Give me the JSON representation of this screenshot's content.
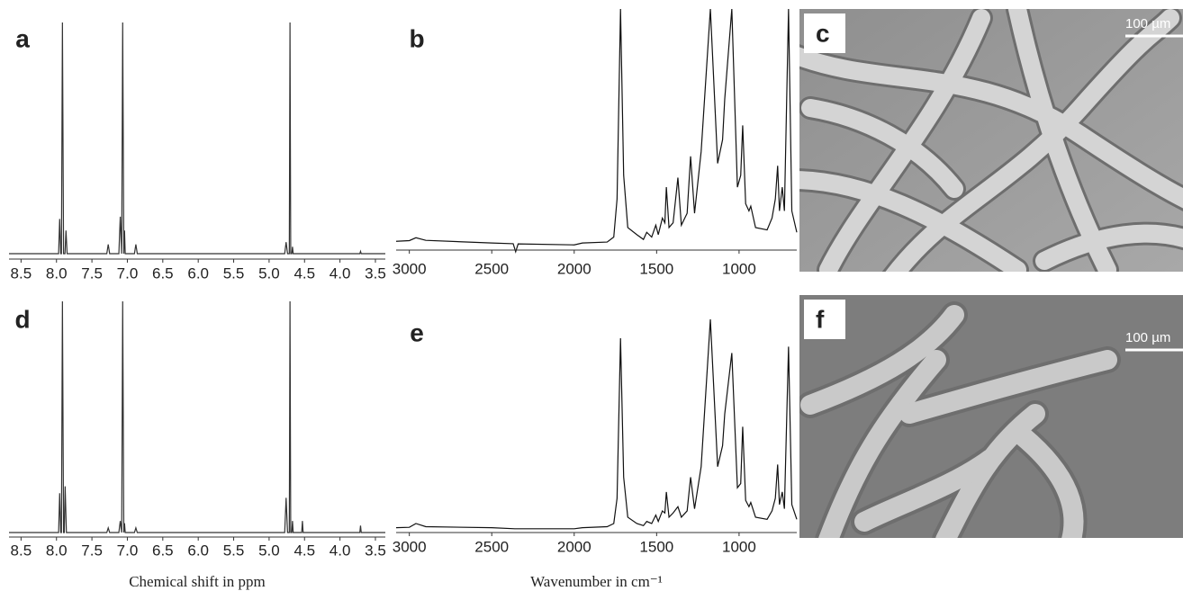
{
  "chart_data": [
    {
      "type": "line",
      "panel_label": "a",
      "xlim": [
        8.67,
        3.36
      ],
      "ylim": [
        0,
        100
      ],
      "color": "#333333",
      "xticks": [
        8.5,
        {
          "value": 8,
          "label": "8.0"
        },
        7.5,
        {
          "value": 7,
          "label": "7.0"
        },
        6.5,
        {
          "value": 6,
          "label": "6.0"
        },
        5.5,
        {
          "value": 5,
          "label": "5.0"
        },
        4.5,
        {
          "value": 4,
          "label": "4.0"
        },
        3.5
      ],
      "x": [
        8.67,
        7.97,
        7.955,
        7.94,
        7.93,
        7.916,
        7.9,
        7.88,
        7.866,
        7.85,
        7.29,
        7.27,
        7.25,
        7.12,
        7.1,
        7.08,
        7.066,
        7.05,
        7.04,
        7.03,
        6.9,
        6.88,
        6.86,
        4.78,
        4.76,
        4.74,
        4.715,
        4.705,
        4.695,
        4.68,
        4.67,
        4.66,
        3.72,
        3.71,
        3.7,
        3.36
      ],
      "values": [
        0,
        0,
        15,
        0,
        0,
        100,
        0,
        0,
        10,
        0,
        0,
        4,
        0,
        0,
        16,
        0,
        100,
        0,
        10,
        0,
        0,
        4,
        0,
        0,
        5,
        0,
        0,
        100,
        0,
        0,
        3,
        0,
        0,
        1,
        0,
        0
      ]
    },
    {
      "type": "line",
      "panel_label": "b",
      "xlim": [
        3080,
        650
      ],
      "ylim": [
        -3,
        100
      ],
      "color": "#111111",
      "xticks": [
        3000,
        2500,
        2000,
        1500,
        1000
      ],
      "x": [
        3080,
        3000,
        2960,
        2900,
        2500,
        2370,
        2355,
        2340,
        2000,
        1950,
        1800,
        1760,
        1740,
        1719,
        1700,
        1675,
        1620,
        1580,
        1560,
        1530,
        1505,
        1490,
        1465,
        1450,
        1441,
        1425,
        1400,
        1371,
        1350,
        1315,
        1294,
        1270,
        1230,
        1174,
        1130,
        1100,
        1087,
        1044,
        1010,
        990,
        978,
        960,
        940,
        929,
        900,
        830,
        800,
        780,
        766,
        755,
        738,
        725,
        700,
        680,
        650
      ],
      "values": [
        2.2,
        2.5,
        3.7,
        2.6,
        1.5,
        1.2,
        -2.2,
        1.1,
        0.7,
        1.5,
        1.9,
        4,
        20,
        100,
        30,
        8,
        5,
        3,
        6,
        4,
        9,
        5,
        12,
        10,
        25,
        8,
        10,
        29,
        9,
        14,
        38,
        14,
        40,
        100,
        35,
        45,
        62,
        100,
        25,
        30,
        51,
        18,
        15,
        17,
        8,
        7,
        12,
        20,
        34,
        15,
        25,
        15,
        100,
        15,
        6
      ]
    },
    {
      "type": "line",
      "panel_label": "d",
      "xlim": [
        8.67,
        3.36
      ],
      "ylim": [
        0,
        100
      ],
      "color": "#333333",
      "x_label": "Chemical shift in ppm",
      "xticks": [
        8.5,
        {
          "value": 8,
          "label": "8.0"
        },
        7.5,
        {
          "value": 7,
          "label": "7.0"
        },
        6.5,
        {
          "value": 6,
          "label": "6.0"
        },
        5.5,
        {
          "value": 5,
          "label": "5.0"
        },
        4.5,
        {
          "value": 4,
          "label": "4.0"
        },
        3.5
      ],
      "x": [
        8.67,
        7.97,
        7.955,
        7.94,
        7.93,
        7.916,
        7.9,
        7.89,
        7.878,
        7.86,
        7.29,
        7.27,
        7.25,
        7.12,
        7.1,
        7.08,
        7.066,
        7.05,
        7.04,
        7.03,
        6.9,
        6.88,
        6.86,
        4.78,
        4.76,
        4.74,
        4.715,
        4.705,
        4.695,
        4.68,
        4.67,
        4.66,
        4.54,
        4.53,
        4.52,
        3.72,
        3.71,
        3.7,
        3.36
      ],
      "values": [
        0,
        0,
        17,
        0,
        0,
        100,
        0,
        0,
        20,
        0,
        0,
        2,
        0,
        0,
        5,
        0,
        100,
        0,
        4,
        0,
        0,
        2,
        0,
        0,
        15,
        0,
        0,
        100,
        0,
        0,
        5,
        0,
        0,
        5,
        0,
        0,
        3,
        0,
        0
      ]
    },
    {
      "type": "line",
      "panel_label": "e",
      "xlim": [
        3080,
        650
      ],
      "ylim": [
        0,
        100
      ],
      "color": "#111111",
      "x_label": "Wavenumber in cm⁻¹",
      "xticks": [
        3000,
        2500,
        2000,
        1500,
        1000
      ],
      "x": [
        3080,
        3000,
        2960,
        2900,
        2500,
        2360,
        2000,
        1950,
        1800,
        1760,
        1740,
        1719,
        1700,
        1675,
        1620,
        1580,
        1560,
        1530,
        1505,
        1490,
        1465,
        1450,
        1441,
        1425,
        1400,
        1371,
        1350,
        1315,
        1294,
        1270,
        1230,
        1174,
        1130,
        1100,
        1087,
        1044,
        1010,
        990,
        978,
        960,
        940,
        929,
        900,
        830,
        800,
        780,
        766,
        755,
        738,
        725,
        700,
        680,
        650
      ],
      "values": [
        1,
        1.2,
        3,
        1.5,
        1,
        0.5,
        0.5,
        1,
        1.5,
        3,
        15,
        91,
        25,
        6,
        3,
        2,
        4,
        3,
        7,
        4,
        9,
        8,
        18,
        6,
        8,
        11,
        6,
        9,
        25,
        10,
        30,
        100,
        30,
        40,
        55,
        84,
        20,
        22,
        49,
        14,
        11,
        13,
        6,
        5,
        9,
        15,
        31,
        12,
        18,
        10,
        87,
        12,
        5
      ]
    }
  ],
  "images": [
    {
      "panel_label": "c",
      "scale_bar": "100 µm"
    },
    {
      "panel_label": "f",
      "scale_bar": "100 µm"
    }
  ]
}
